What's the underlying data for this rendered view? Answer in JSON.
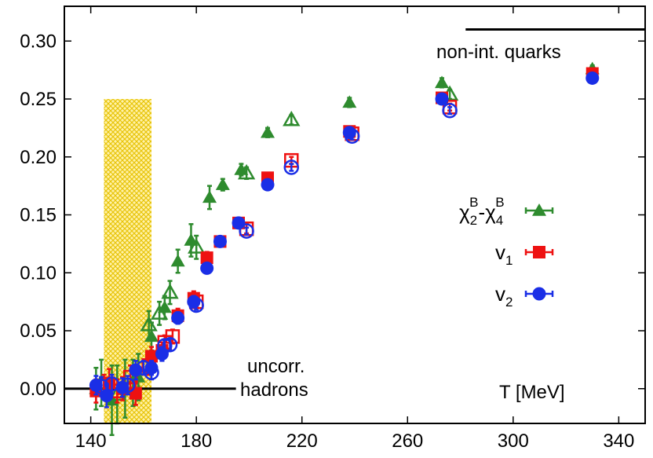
{
  "chart_data": {
    "type": "scatter",
    "xlabel": "T [MeV]",
    "xlim": [
      130,
      350
    ],
    "ylim": [
      -0.03,
      0.33
    ],
    "x_ticks": [
      140,
      180,
      220,
      260,
      300,
      340
    ],
    "y_ticks": [
      0.0,
      0.05,
      0.1,
      0.15,
      0.2,
      0.25,
      0.3
    ],
    "y_tick_labels": [
      "0.00",
      "0.05",
      "0.10",
      "0.15",
      "0.20",
      "0.25",
      "0.30"
    ],
    "x_tick_labels": [
      "140",
      "180",
      "220",
      "260",
      "300",
      "340"
    ],
    "band": {
      "x": [
        145,
        163
      ],
      "y": [
        -0.03,
        0.25
      ],
      "color": "#f2d520"
    },
    "reference_lines": [
      {
        "label": "non-int. quarks",
        "y": 0.31,
        "x": [
          282,
          350
        ]
      },
      {
        "label": "uncorr. hadrons",
        "y": 0.0,
        "x": [
          130,
          195
        ]
      }
    ],
    "annotations": {
      "quarks": "non-int. quarks",
      "hadrons_1": "uncorr.",
      "hadrons_2": "hadrons"
    },
    "series": [
      {
        "name": "χ2B-χ4B",
        "legend_main": "χ",
        "legend_sub1": "2",
        "legend_sup1": "B",
        "legend_dash": "-χ",
        "legend_sub2": "4",
        "legend_sup2": "B",
        "color": "#2e8b2e",
        "marker": "triangle",
        "filled": [
          [
            142,
            0.0,
            0.018
          ],
          [
            148,
            -0.01,
            0.03
          ],
          [
            153,
            0.0,
            0.025
          ],
          [
            158,
            0.01,
            0.02
          ],
          [
            163,
            0.045,
            0.012
          ],
          [
            168,
            0.07,
            0.01
          ],
          [
            173,
            0.11,
            0.01
          ],
          [
            178,
            0.128,
            0.014
          ],
          [
            185,
            0.165,
            0.01
          ],
          [
            190,
            0.176,
            0.005
          ],
          [
            197,
            0.189,
            0.005
          ],
          [
            207,
            0.221,
            0.004
          ],
          [
            238,
            0.247,
            0.004
          ],
          [
            273,
            0.264,
            0.004
          ],
          [
            330,
            0.276,
            0.003
          ]
        ],
        "open": [
          [
            144,
            0.005,
            0.02
          ],
          [
            150,
            -0.005,
            0.025
          ],
          [
            156,
            0.005,
            0.02
          ],
          [
            162,
            0.055,
            0.012
          ],
          [
            166,
            0.065,
            0.01
          ],
          [
            170,
            0.083,
            0.01
          ],
          [
            180,
            0.122,
            0.01
          ],
          [
            199,
            0.186,
            0.005
          ],
          [
            216,
            0.232,
            0.004
          ],
          [
            276,
            0.254,
            0.004
          ]
        ]
      },
      {
        "name": "v1",
        "legend_main": "v",
        "legend_sub1": "1",
        "color": "#ee1111",
        "marker": "square",
        "filled": [
          [
            142,
            -0.002,
            0.01
          ],
          [
            147,
            0.005,
            0.012
          ],
          [
            152,
            0.0,
            0.01
          ],
          [
            157,
            -0.004,
            0.01
          ],
          [
            163,
            0.028,
            0.008
          ],
          [
            167,
            0.033,
            0.007
          ],
          [
            173,
            0.063,
            0.006
          ],
          [
            179,
            0.078,
            0.006
          ],
          [
            184,
            0.113,
            0.005
          ],
          [
            189,
            0.127,
            0.004
          ],
          [
            196,
            0.143,
            0.004
          ],
          [
            207,
            0.182,
            0.003
          ],
          [
            238,
            0.222,
            0.003
          ],
          [
            273,
            0.251,
            0.003
          ],
          [
            330,
            0.272,
            0.003
          ]
        ],
        "open": [
          [
            145,
            0.002,
            0.01
          ],
          [
            150,
            -0.002,
            0.01
          ],
          [
            155,
            0.01,
            0.01
          ],
          [
            162,
            0.02,
            0.008
          ],
          [
            168,
            0.04,
            0.006
          ],
          [
            171,
            0.045,
            0.006
          ],
          [
            180,
            0.075,
            0.005
          ],
          [
            199,
            0.138,
            0.004
          ],
          [
            216,
            0.197,
            0.003
          ],
          [
            239,
            0.22,
            0.003
          ],
          [
            276,
            0.243,
            0.003
          ]
        ]
      },
      {
        "name": "v2",
        "legend_main": "v",
        "legend_sub1": "2",
        "color": "#1a2ee6",
        "marker": "circle",
        "filled": [
          [
            142,
            0.003,
            0.008
          ],
          [
            146,
            -0.006,
            0.01
          ],
          [
            152,
            0.001,
            0.008
          ],
          [
            157,
            0.016,
            0.008
          ],
          [
            163,
            0.018,
            0.006
          ],
          [
            167,
            0.03,
            0.006
          ],
          [
            173,
            0.061,
            0.005
          ],
          [
            179,
            0.075,
            0.005
          ],
          [
            184,
            0.104,
            0.004
          ],
          [
            189,
            0.127,
            0.004
          ],
          [
            196,
            0.143,
            0.003
          ],
          [
            207,
            0.176,
            0.003
          ],
          [
            238,
            0.221,
            0.003
          ],
          [
            273,
            0.25,
            0.003
          ],
          [
            330,
            0.268,
            0.002
          ]
        ],
        "open": [
          [
            144,
            0.002,
            0.008
          ],
          [
            148,
            0.004,
            0.008
          ],
          [
            154,
            0.003,
            0.008
          ],
          [
            160,
            0.018,
            0.006
          ],
          [
            163,
            0.014,
            0.006
          ],
          [
            168,
            0.037,
            0.005
          ],
          [
            170,
            0.038,
            0.005
          ],
          [
            180,
            0.072,
            0.004
          ],
          [
            199,
            0.136,
            0.003
          ],
          [
            216,
            0.191,
            0.003
          ],
          [
            239,
            0.218,
            0.003
          ],
          [
            276,
            0.24,
            0.003
          ]
        ]
      }
    ]
  }
}
